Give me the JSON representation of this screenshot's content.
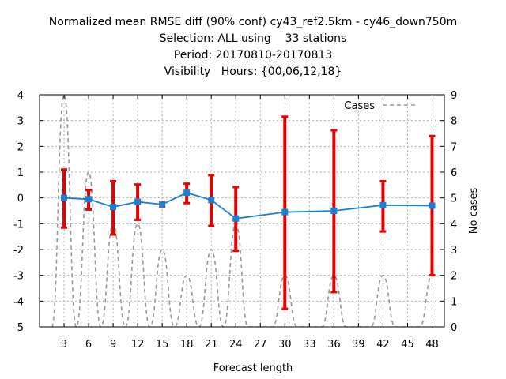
{
  "chart_data": {
    "type": "line",
    "title_lines": [
      "Normalized mean RMSE diff (90% conf) cy43_ref2.5km - cy46_down750m",
      "Selection: ALL using    33 stations",
      "Period: 20170810-20170813",
      "Visibility   Hours: {00,06,12,18}"
    ],
    "xlabel": "Forecast length",
    "ylabel_left": "",
    "ylabel_right": "No cases",
    "x_ticks": [
      3,
      6,
      9,
      12,
      15,
      18,
      21,
      24,
      27,
      30,
      33,
      36,
      39,
      42,
      45,
      48
    ],
    "xlim": [
      0,
      49.5
    ],
    "ylim_left": [
      -5,
      4
    ],
    "y_ticks_left": [
      -5,
      -4,
      -3,
      -2,
      -1,
      0,
      1,
      2,
      3,
      4
    ],
    "ylim_right": [
      0,
      9
    ],
    "y_ticks_right": [
      0,
      1,
      2,
      3,
      4,
      5,
      6,
      7,
      8,
      9
    ],
    "grid": true,
    "legend": {
      "position": "top-right",
      "label": "Cases"
    },
    "series": [
      {
        "name": "",
        "kind": "line-with-errorbars",
        "color": "#1a7fd6",
        "errorbar_color": "#e60000",
        "x": [
          3,
          6,
          9,
          12,
          15,
          18,
          21,
          24,
          30,
          36,
          42,
          48
        ],
        "y": [
          0.0,
          -0.05,
          -0.35,
          -0.15,
          -0.25,
          0.2,
          -0.08,
          -0.8,
          -0.55,
          -0.5,
          -0.28,
          -0.3
        ],
        "err_low": [
          -1.15,
          -0.45,
          -1.42,
          -0.85,
          -0.35,
          -0.2,
          -1.08,
          -2.05,
          -4.3,
          -3.65,
          -1.3,
          -3.0
        ],
        "err_high": [
          1.1,
          0.3,
          0.65,
          0.52,
          -0.15,
          0.55,
          0.88,
          0.42,
          3.15,
          2.62,
          0.65,
          2.4
        ]
      },
      {
        "name": "Cases",
        "kind": "dashed-line",
        "axis": "right",
        "color": "#999999",
        "x": [
          1.5,
          3,
          4.5,
          6,
          7.5,
          9,
          10.5,
          12,
          13.5,
          15,
          16.5,
          18,
          19.5,
          21,
          22.5,
          24,
          25.5,
          27,
          28.5,
          30,
          31.5,
          33,
          34.5,
          36,
          37.5,
          39,
          40.5,
          42,
          43.5,
          45,
          46.5,
          48
        ],
        "y": [
          0,
          9,
          0,
          6,
          0,
          4,
          0,
          4,
          0,
          3,
          0,
          2,
          0,
          3,
          0,
          4,
          0,
          0,
          0,
          2,
          0,
          0,
          0,
          2,
          0,
          0,
          0,
          2,
          0,
          0,
          0,
          2
        ]
      }
    ]
  }
}
